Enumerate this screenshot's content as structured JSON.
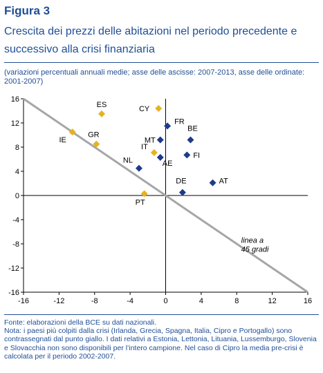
{
  "figure_label": "Figura 3",
  "title": "Crescita dei prezzi delle abitazioni nel periodo precedente e successivo alla crisi finanziaria",
  "subtitle": "(variazioni percentuali annuali medie; asse delle ascisse: 2007-2013, asse delle ordinate: 2001-2007)",
  "notes": {
    "source": "Fonte: elaborazioni della BCE su dati nazionali.",
    "note": "Nota: i paesi più colpiti dalla crisi (Irlanda, Grecia, Spagna, Italia, Cipro e Portogallo) sono contrassegnati dal punto giallo. I dati relativi a Estonia, Lettonia, Lituania, Lussemburgo, Slovenia e Slovacchia non sono disponibili per l’intero campione. Nel caso di Cipro la media pre-crisi è calcolata per il periodo 2002-2007."
  },
  "colors": {
    "heading": "#1f4e96",
    "crisis_marker": "#e6b31e",
    "other_marker": "#1f3a8a",
    "line_45": "#a6a6a6"
  },
  "chart_data": {
    "type": "scatter",
    "xlim": [
      -16,
      16
    ],
    "ylim": [
      -16,
      16
    ],
    "xticks": [
      "-16",
      "-12",
      "-8",
      "-4",
      "0",
      "4",
      "8",
      "12",
      "16"
    ],
    "yticks": [
      "16",
      "12",
      "8",
      "4",
      "0",
      "-4",
      "-8",
      "-12",
      "-16"
    ],
    "grid": false,
    "line_45": {
      "points": [
        [
          -16,
          16
        ],
        [
          16,
          -16
        ]
      ],
      "label_line1": "linea a",
      "label_line2": "45 gradi"
    },
    "points": [
      {
        "label": "IE",
        "x": -10.5,
        "y": 10.5,
        "group": "crisis"
      },
      {
        "label": "ES",
        "x": -7.2,
        "y": 13.5,
        "group": "crisis"
      },
      {
        "label": "GR",
        "x": -7.8,
        "y": 8.5,
        "group": "crisis"
      },
      {
        "label": "CY",
        "x": -0.8,
        "y": 14.4,
        "group": "crisis"
      },
      {
        "label": "IT",
        "x": -1.3,
        "y": 7.1,
        "group": "crisis"
      },
      {
        "label": "PT",
        "x": -2.4,
        "y": 0.3,
        "group": "crisis"
      },
      {
        "label": "FR",
        "x": 0.2,
        "y": 11.5,
        "group": "other"
      },
      {
        "label": "BE",
        "x": 2.8,
        "y": 9.2,
        "group": "other"
      },
      {
        "label": "MT",
        "x": -0.6,
        "y": 9.2,
        "group": "other"
      },
      {
        "label": "AE",
        "x": -0.6,
        "y": 6.3,
        "group": "other"
      },
      {
        "label": "FI",
        "x": 2.4,
        "y": 6.7,
        "group": "other"
      },
      {
        "label": "NL",
        "x": -3.0,
        "y": 4.5,
        "group": "other"
      },
      {
        "label": "DE",
        "x": 1.9,
        "y": 0.5,
        "group": "other"
      },
      {
        "label": "AT",
        "x": 5.3,
        "y": 2.1,
        "group": "other"
      }
    ]
  }
}
